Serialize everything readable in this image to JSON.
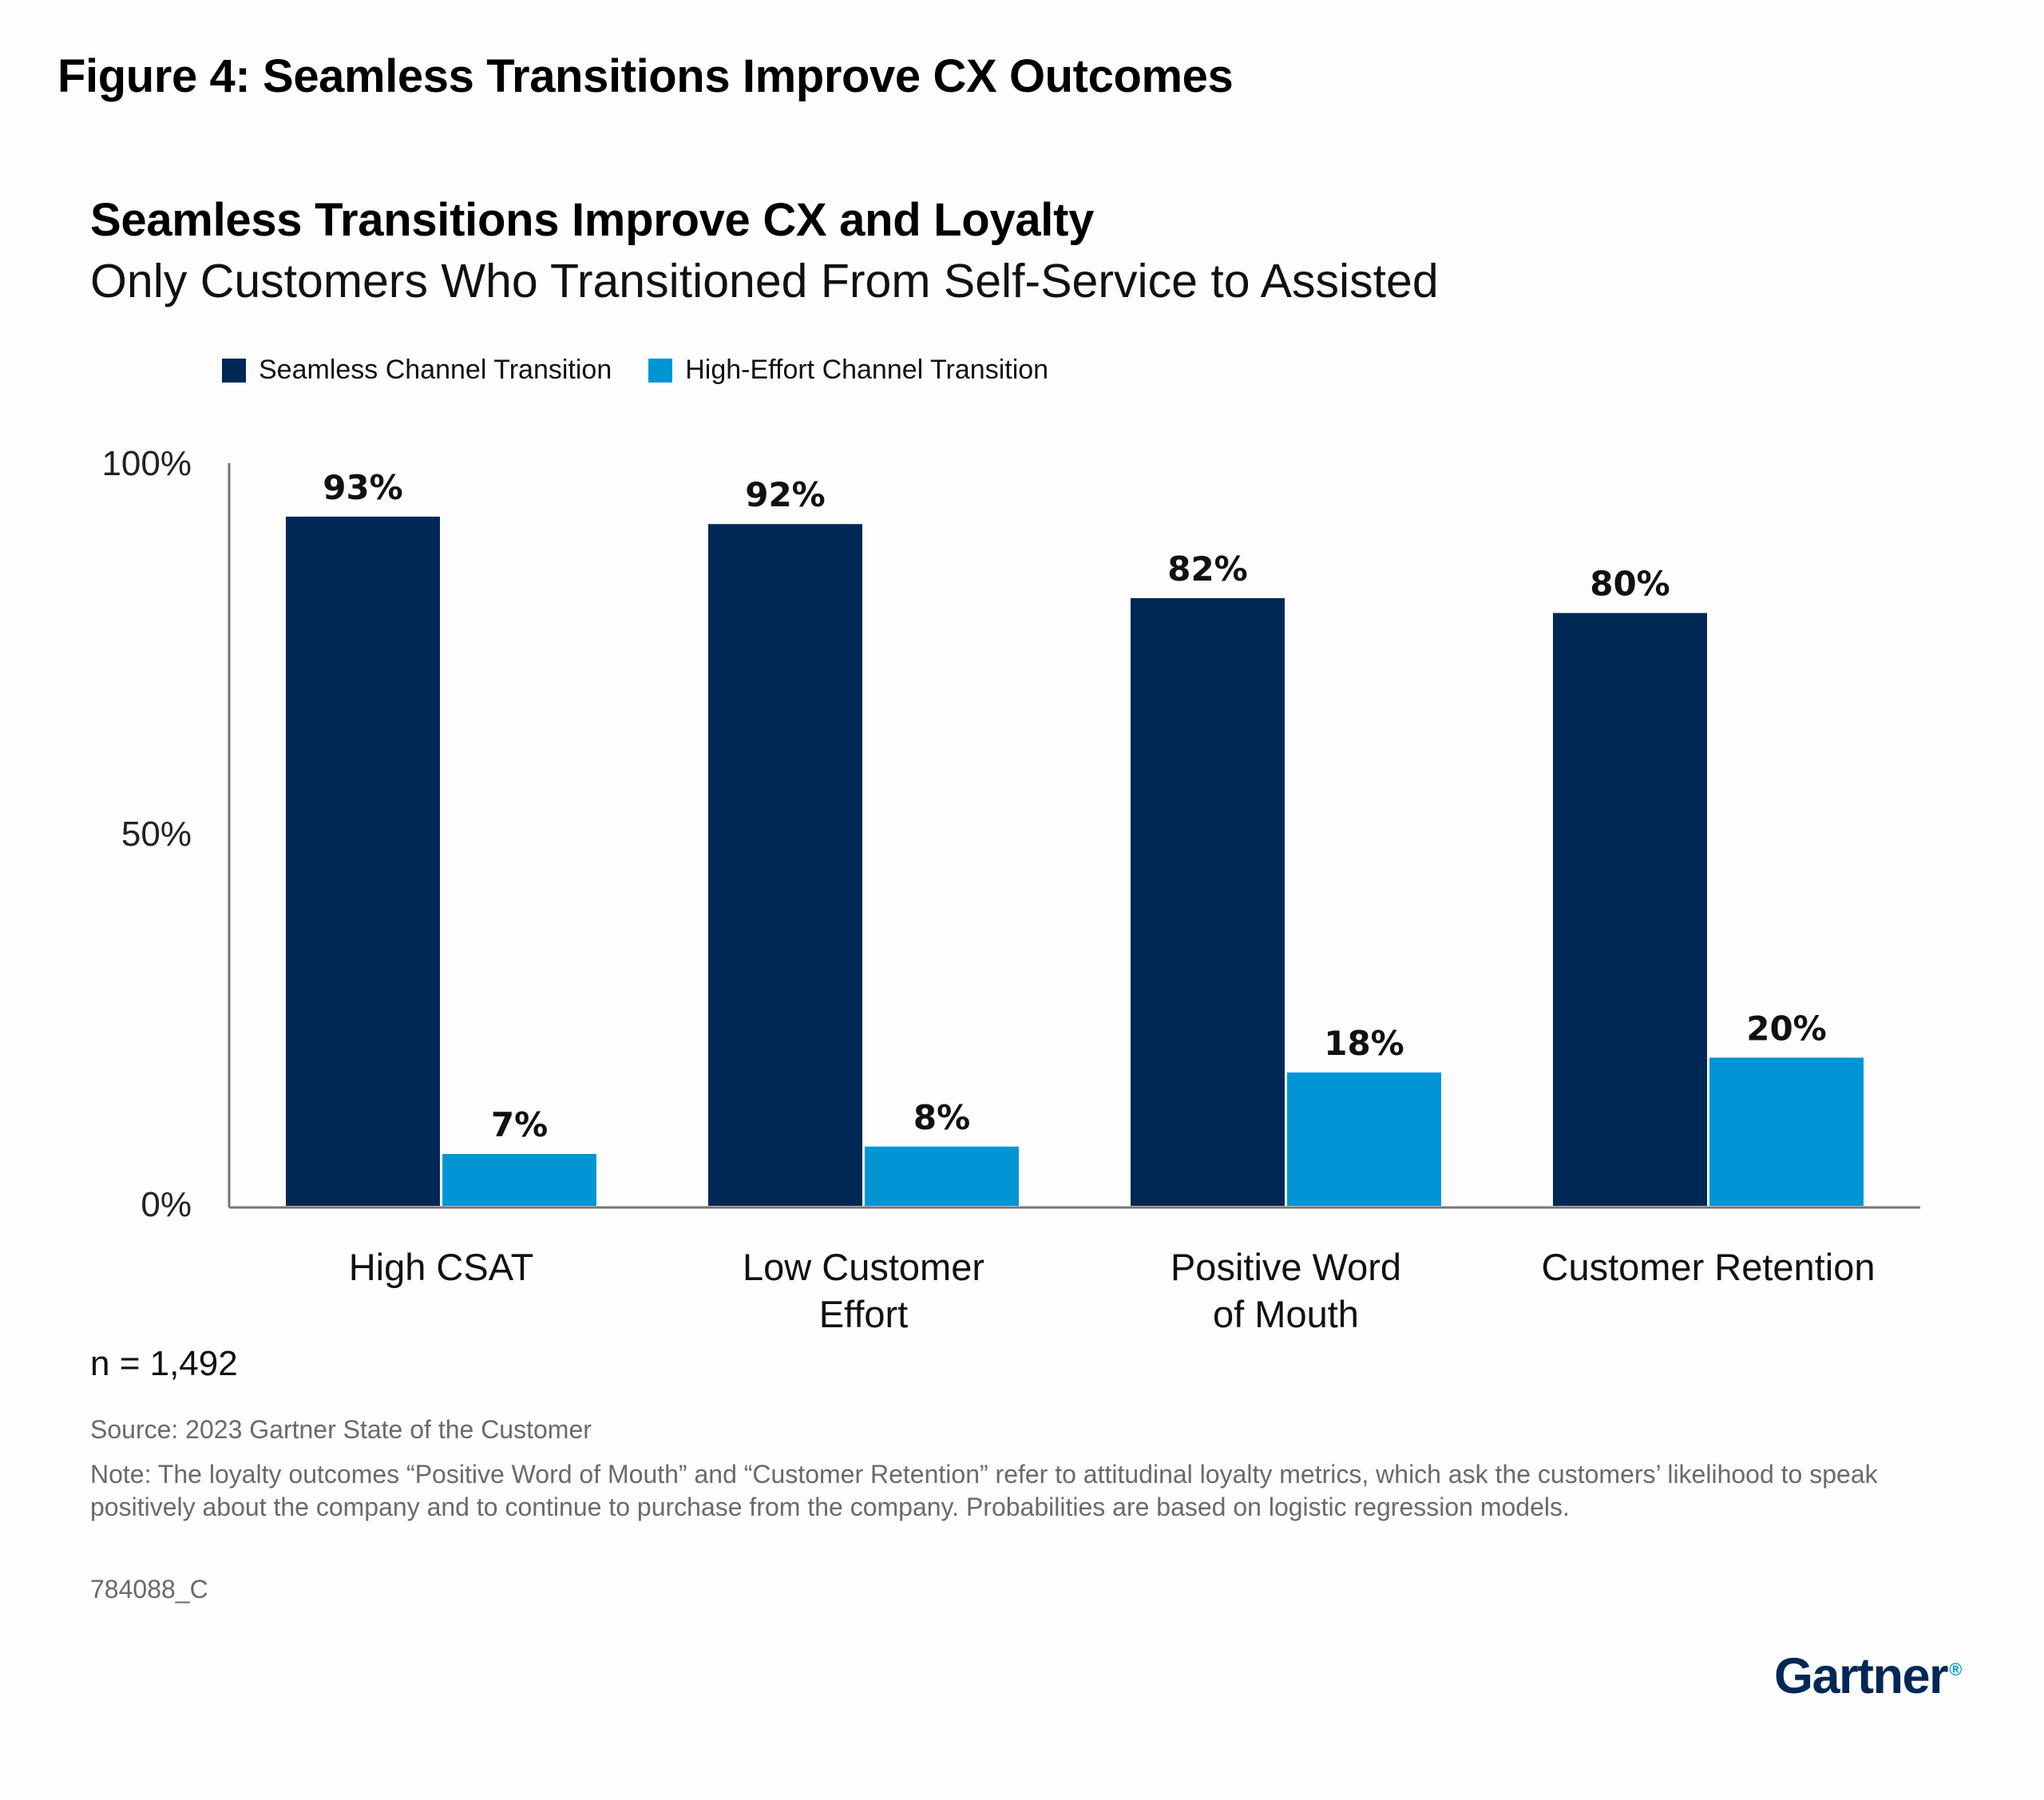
{
  "figure_title": "Figure 4: Seamless Transitions Improve CX Outcomes",
  "colors": {
    "seamless": "#002856",
    "high_effort": "#0096d6",
    "axis": "#777777"
  },
  "chart_data": {
    "type": "bar",
    "title": "Seamless Transitions Improve CX and Loyalty",
    "subtitle": "Only Customers Who Transitioned From Self-Service to Assisted",
    "categories": [
      [
        "High CSAT"
      ],
      [
        "Low Customer",
        "Effort"
      ],
      [
        "Positive Word",
        "of Mouth"
      ],
      [
        "Customer Retention"
      ]
    ],
    "series": [
      {
        "name": "Seamless Channel Transition",
        "values": [
          93,
          92,
          82,
          80
        ],
        "labels": [
          "93%",
          "92%",
          "82%",
          "80%"
        ]
      },
      {
        "name": "High-Effort Channel Transition",
        "values": [
          7,
          8,
          18,
          20
        ],
        "labels": [
          "7%",
          "8%",
          "18%",
          "20%"
        ]
      }
    ],
    "yticks": [
      0,
      50,
      100
    ],
    "ytick_labels": [
      "0%",
      "50%",
      "100%"
    ],
    "ylim": [
      0,
      100
    ],
    "xlabel": "",
    "ylabel": "",
    "legend_position": "top-left",
    "grid": false
  },
  "n_label": "n = 1,492",
  "source": "Source: 2023 Gartner State of the Customer",
  "note": "Note: The loyalty outcomes “Positive Word of Mouth” and “Customer Retention” refer to attitudinal loyalty metrics, which ask the customers’ likelihood to speak positively about the company and to continue to purchase from the company. Probabilities are based on logistic regression models.",
  "code": "784088_C",
  "logo": {
    "text": "Gartner",
    "mark": "®"
  }
}
